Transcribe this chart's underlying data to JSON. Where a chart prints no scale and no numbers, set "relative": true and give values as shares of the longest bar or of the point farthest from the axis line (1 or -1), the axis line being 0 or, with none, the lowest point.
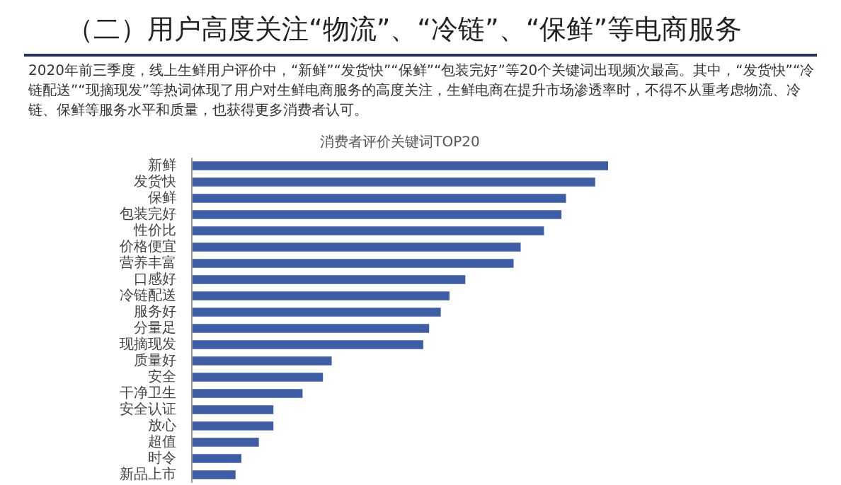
{
  "chart_data": {
    "type": "bar",
    "orientation": "horizontal",
    "relative": true,
    "title": "（二）用户高度关注“物流”、“冷链”、“保鲜”等电商服务",
    "subtitle": "消费者评价关键词TOP20",
    "annotations": [
      "2020年前三季度，线上生鲜用户评价中，“新鲜”“发货快”“保鲜”“包装完好”等20个关键词出现频次最高。其中，“发货快”“冷链配送”“现摘现发”等热词体现了用户对生鲜电商服务的高度关注，生鲜电商在提升市场渗透率时，不得不从重考虑物流、冷链、保鲜等服务水平和质量，也获得更多消费者认可。"
    ],
    "categories": [
      "新鲜",
      "发货快",
      "保鲜",
      "包装完好",
      "性价比",
      "价格便宜",
      "营养丰富",
      "口感好",
      "冷链配送",
      "服务好",
      "分量足",
      "现摘现发",
      "质量好",
      "安全",
      "干净卫生",
      "安全认证",
      "放心",
      "超值",
      "时令",
      "新品上市"
    ],
    "color": "#3d5da6",
    "values": [
      1,
      0.969,
      0.899,
      0.888,
      0.846,
      0.79,
      0.773,
      0.657,
      0.619,
      0.598,
      0.57,
      0.556,
      0.336,
      0.315,
      0.266,
      0.196,
      0.196,
      0.161,
      0.119,
      0.105
    ],
    "grid": false
  }
}
